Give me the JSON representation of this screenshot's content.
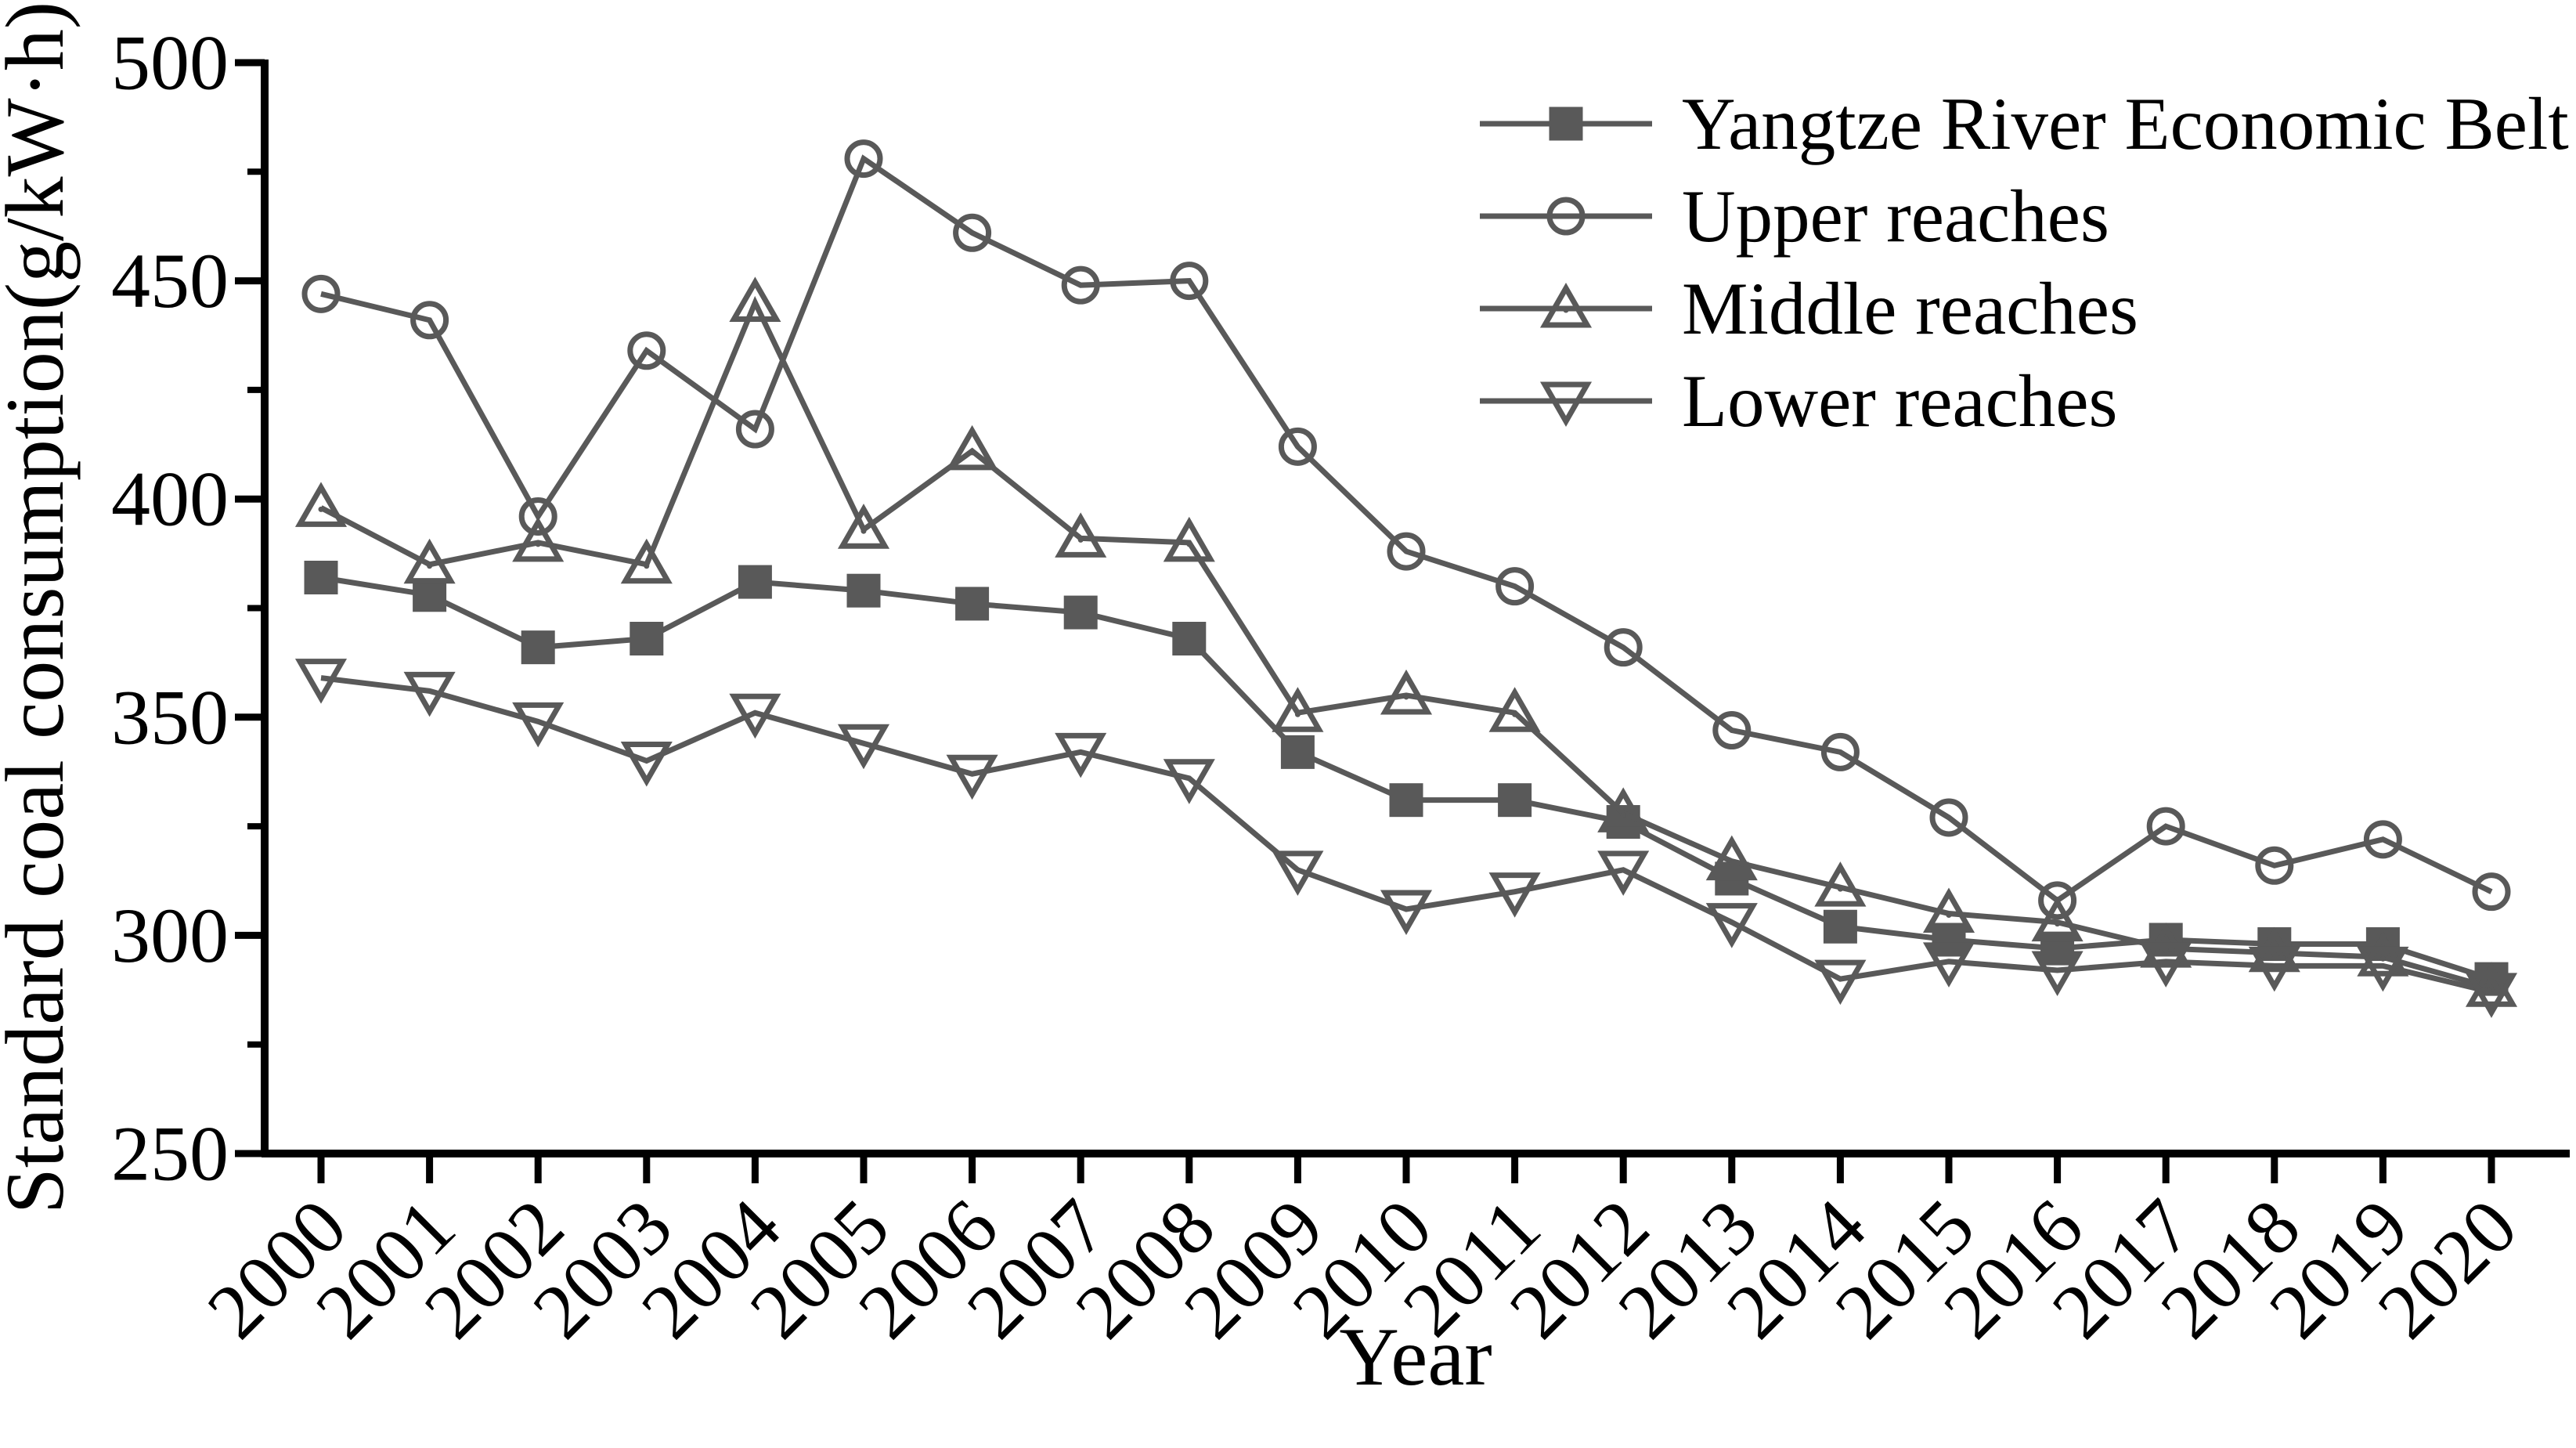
{
  "figure": {
    "background": "#ffffff",
    "axis_color": "#000000",
    "series_color": "#595959",
    "text_color": "#000000"
  },
  "chart_data": {
    "type": "line",
    "title": "",
    "xlabel": "Year",
    "ylabel": "Standard coal consumption(g/kW·h)",
    "grid": false,
    "legend_position": "upper right",
    "ylim": [
      250,
      500
    ],
    "yticks_major": [
      250,
      300,
      350,
      400,
      450,
      500
    ],
    "yticks_minor": [
      275,
      325,
      375,
      425,
      475
    ],
    "x": [
      2000,
      2001,
      2002,
      2003,
      2004,
      2005,
      2006,
      2007,
      2008,
      2009,
      2010,
      2011,
      2012,
      2013,
      2014,
      2015,
      2016,
      2017,
      2018,
      2019,
      2020
    ],
    "series": [
      {
        "name": "Yangtze River Economic Belt",
        "marker": "filled-square",
        "values": [
          382,
          378,
          366,
          368,
          381,
          379,
          376,
          374,
          368,
          342,
          331,
          331,
          326,
          313,
          302,
          299,
          297,
          299,
          298,
          298,
          290
        ]
      },
      {
        "name": "Upper reaches",
        "marker": "open-circle",
        "values": [
          447,
          441,
          396,
          434,
          416,
          478,
          461,
          449,
          450,
          412,
          388,
          380,
          366,
          347,
          342,
          327,
          308,
          325,
          316,
          322,
          310
        ]
      },
      {
        "name": "Middle reaches",
        "marker": "open-triangle-up",
        "values": [
          398,
          385,
          390,
          385,
          445,
          393,
          411,
          391,
          390,
          351,
          355,
          351,
          328,
          317,
          311,
          305,
          303,
          297,
          296,
          295,
          288
        ]
      },
      {
        "name": "Lower reaches",
        "marker": "open-triangle-down",
        "values": [
          359,
          356,
          349,
          340,
          351,
          344,
          337,
          342,
          336,
          315,
          306,
          310,
          315,
          303,
          290,
          294,
          292,
          294,
          293,
          293,
          287
        ]
      }
    ]
  }
}
